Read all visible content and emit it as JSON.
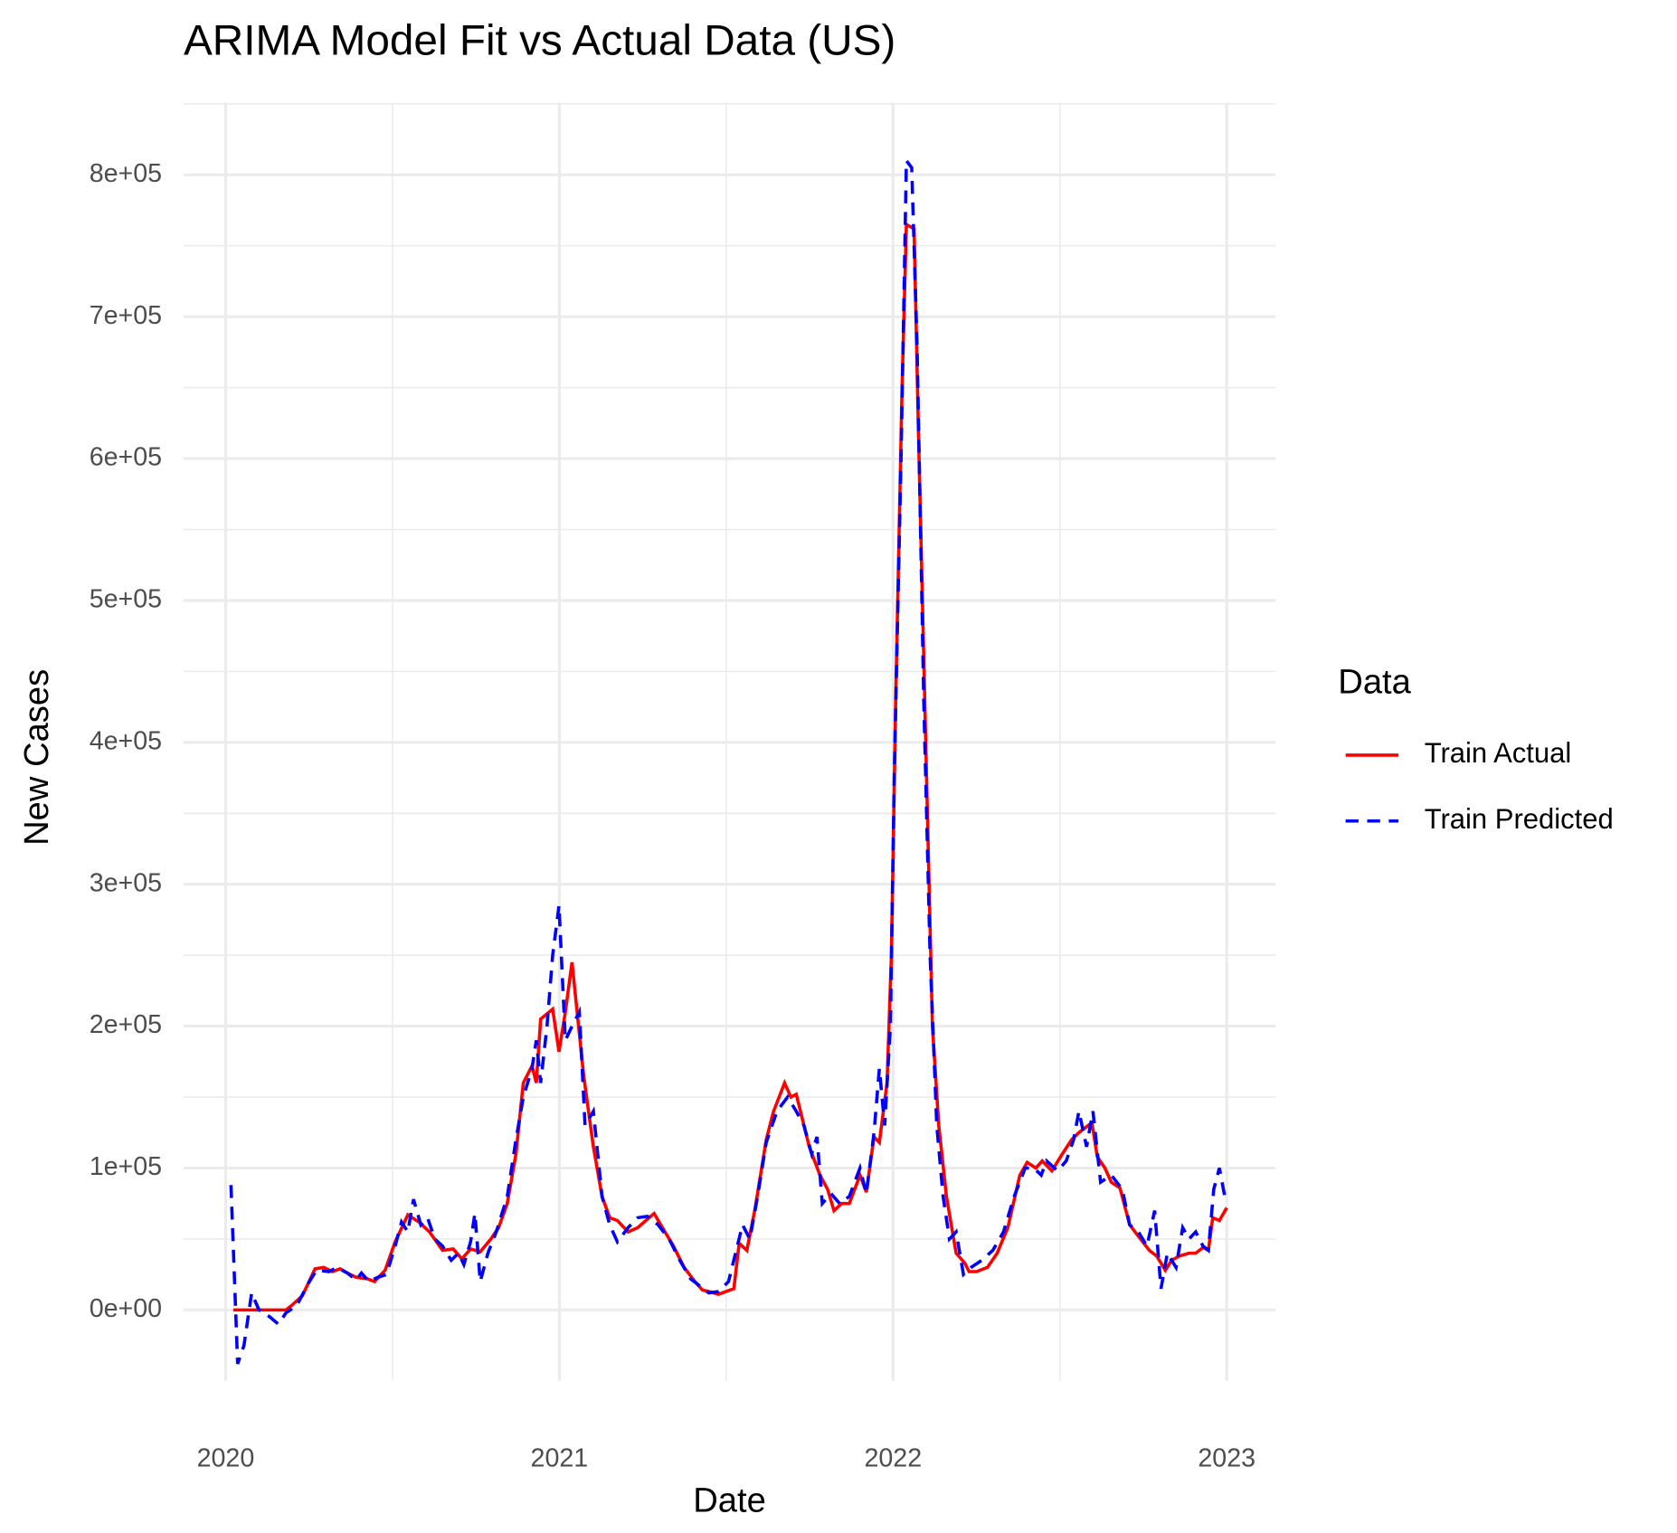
{
  "chart_data": {
    "type": "line",
    "title": "ARIMA Model Fit vs Actual Data (US)",
    "x_label": "Date",
    "y_label": "New Cases",
    "legend_title": "Data",
    "legend_position": "right",
    "grid": true,
    "xlim": [
      2019.874,
      2023.146
    ],
    "xticks": [
      2020,
      2021,
      2022,
      2023
    ],
    "ylim": [
      -50000,
      851000
    ],
    "yticks": [
      {
        "value": 0,
        "label": "0e+00"
      },
      {
        "value": 100000,
        "label": "1e+05"
      },
      {
        "value": 200000,
        "label": "2e+05"
      },
      {
        "value": 300000,
        "label": "3e+05"
      },
      {
        "value": 400000,
        "label": "4e+05"
      },
      {
        "value": 500000,
        "label": "5e+05"
      },
      {
        "value": 600000,
        "label": "6e+05"
      },
      {
        "value": 700000,
        "label": "7e+05"
      },
      {
        "value": 800000,
        "label": "8e+05"
      }
    ],
    "series": [
      {
        "name": "Train Actual",
        "color": "#ff0000",
        "dash": "solid",
        "x": [
          2020.023,
          2020.181,
          2020.197,
          2020.23,
          2020.268,
          2020.294,
          2020.32,
          2020.343,
          2020.365,
          2020.391,
          2020.424,
          2020.446,
          2020.478,
          2020.508,
          2020.546,
          2020.579,
          2020.611,
          2020.65,
          2020.682,
          2020.708,
          2020.734,
          2020.763,
          2020.795,
          2020.818,
          2020.844,
          2020.87,
          2020.892,
          2020.918,
          2020.931,
          2020.944,
          2020.98,
          2020.999,
          2021.018,
          2021.038,
          2021.073,
          2021.102,
          2021.128,
          2021.151,
          2021.174,
          2021.206,
          2021.235,
          2021.264,
          2021.284,
          2021.309,
          2021.342,
          2021.374,
          2021.406,
          2021.429,
          2021.448,
          2021.477,
          2021.5,
          2021.523,
          2021.539,
          2021.562,
          2021.587,
          2021.62,
          2021.642,
          2021.675,
          2021.694,
          2021.71,
          2021.749,
          2021.781,
          2021.804,
          2021.823,
          2021.846,
          2021.869,
          2021.901,
          2021.92,
          2021.943,
          2021.959,
          2021.982,
          2021.995,
          2022.008,
          2022.027,
          2022.04,
          2022.063,
          2022.076,
          2022.098,
          2022.118,
          2022.137,
          2022.16,
          2022.189,
          2022.215,
          2022.228,
          2022.25,
          2022.283,
          2022.312,
          2022.344,
          2022.38,
          2022.402,
          2022.428,
          2022.447,
          2022.476,
          2022.502,
          2022.535,
          2022.557,
          2022.596,
          2022.612,
          2022.635,
          2022.654,
          2022.68,
          2022.709,
          2022.735,
          2022.768,
          2022.79,
          2022.816,
          2022.835,
          2022.858,
          2022.887,
          2022.907,
          2022.929,
          2022.945,
          2022.958,
          2022.978,
          2023.0
        ],
        "values": [
          0,
          0,
          3000,
          10000,
          29000,
          30000,
          27000,
          29000,
          26000,
          23000,
          22000,
          20000,
          28000,
          48000,
          67000,
          62000,
          55000,
          42000,
          43000,
          36000,
          43000,
          41000,
          50000,
          58000,
          75000,
          110000,
          160000,
          172000,
          160000,
          205000,
          212000,
          182000,
          210000,
          245000,
          165000,
          115000,
          80000,
          65000,
          63000,
          55000,
          58000,
          64000,
          68000,
          58000,
          45000,
          30000,
          20000,
          14000,
          13000,
          11000,
          13000,
          15000,
          47000,
          42000,
          72000,
          120000,
          140000,
          160000,
          150000,
          152000,
          115000,
          95000,
          85000,
          70000,
          75000,
          75000,
          95000,
          83000,
          122000,
          118000,
          160000,
          250000,
          430000,
          650000,
          765000,
          762000,
          620000,
          400000,
          200000,
          130000,
          80000,
          40000,
          33000,
          27000,
          27000,
          30000,
          40000,
          58000,
          95000,
          104000,
          100000,
          105000,
          98000,
          108000,
          120000,
          125000,
          132000,
          108000,
          100000,
          90000,
          86000,
          60000,
          52000,
          42000,
          38000,
          28000,
          35000,
          38000,
          40000,
          40000,
          44000,
          42000,
          65000,
          63000,
          72000
        ]
      },
      {
        "name": "Train Predicted",
        "color": "#0000ff",
        "dash": "dashed",
        "x": [
          2020.016,
          2020.036,
          2020.055,
          2020.078,
          2020.1,
          2020.133,
          2020.158,
          2020.181,
          2020.213,
          2020.246,
          2020.272,
          2020.31,
          2020.333,
          2020.365,
          2020.391,
          2020.407,
          2020.43,
          2020.456,
          2020.482,
          2020.508,
          2020.527,
          2020.546,
          2020.563,
          2020.585,
          2020.605,
          2020.627,
          2020.65,
          2020.676,
          2020.698,
          2020.714,
          2020.734,
          2020.747,
          2020.763,
          2020.786,
          2020.811,
          2020.844,
          2020.87,
          2020.892,
          2020.918,
          2020.931,
          2020.944,
          2020.963,
          2020.98,
          2020.999,
          2021.018,
          2021.038,
          2021.06,
          2021.077,
          2021.102,
          2021.128,
          2021.151,
          2021.174,
          2021.206,
          2021.235,
          2021.264,
          2021.296,
          2021.329,
          2021.361,
          2021.393,
          2021.426,
          2021.448,
          2021.477,
          2021.507,
          2021.549,
          2021.571,
          2021.594,
          2021.62,
          2021.652,
          2021.684,
          2021.71,
          2021.733,
          2021.756,
          2021.772,
          2021.788,
          2021.814,
          2021.84,
          2021.869,
          2021.901,
          2021.92,
          2021.943,
          2021.959,
          2021.975,
          2021.992,
          2022.004,
          2022.024,
          2022.04,
          2022.056,
          2022.072,
          2022.092,
          2022.111,
          2022.131,
          2022.15,
          2022.169,
          2022.189,
          2022.211,
          2022.234,
          2022.266,
          2022.299,
          2022.331,
          2022.363,
          2022.396,
          2022.422,
          2022.444,
          2022.46,
          2022.493,
          2022.519,
          2022.541,
          2022.557,
          2022.58,
          2022.599,
          2022.622,
          2022.654,
          2022.687,
          2022.709,
          2022.735,
          2022.761,
          2022.784,
          2022.803,
          2022.822,
          2022.848,
          2022.868,
          2022.887,
          2022.907,
          2022.929,
          2022.945,
          2022.961,
          2022.978,
          2022.994
        ],
        "values": [
          88000,
          -38000,
          -25000,
          12000,
          0,
          -5000,
          -10000,
          -2000,
          3000,
          18000,
          28000,
          27000,
          30000,
          26000,
          21000,
          26000,
          20000,
          23000,
          25000,
          45000,
          62000,
          55000,
          78000,
          60000,
          65000,
          50000,
          45000,
          35000,
          40000,
          32000,
          48000,
          68000,
          20000,
          40000,
          55000,
          80000,
          120000,
          150000,
          170000,
          190000,
          160000,
          200000,
          250000,
          285000,
          190000,
          200000,
          210000,
          130000,
          140000,
          80000,
          60000,
          48000,
          58000,
          65000,
          66000,
          60000,
          50000,
          35000,
          22000,
          16000,
          12000,
          13000,
          20000,
          60000,
          50000,
          80000,
          118000,
          140000,
          150000,
          140000,
          130000,
          110000,
          122000,
          75000,
          82000,
          75000,
          80000,
          100000,
          82000,
          125000,
          170000,
          130000,
          200000,
          380000,
          600000,
          810000,
          805000,
          680000,
          430000,
          250000,
          130000,
          80000,
          50000,
          55000,
          25000,
          30000,
          35000,
          42000,
          55000,
          80000,
          100000,
          100000,
          95000,
          105000,
          98000,
          105000,
          120000,
          140000,
          115000,
          140000,
          90000,
          95000,
          85000,
          60000,
          55000,
          45000,
          70000,
          15000,
          40000,
          30000,
          58000,
          50000,
          55000,
          45000,
          42000,
          85000,
          100000,
          80000
        ]
      }
    ]
  }
}
